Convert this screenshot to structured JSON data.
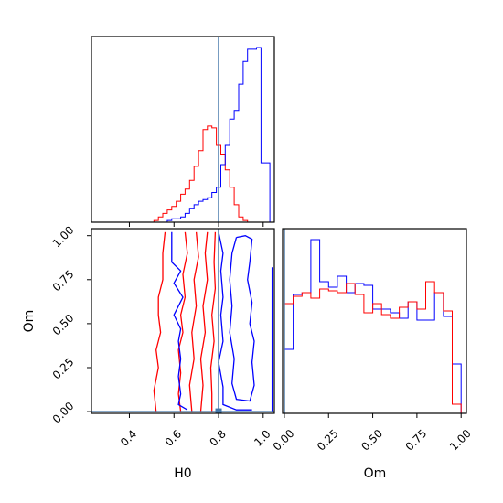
{
  "chart_data": [
    {
      "type": "histogram",
      "panel": "H0 marginal (top-left)",
      "xlim": [
        0.23,
        1.05
      ],
      "bin_width": 0.02,
      "bin_edges_start": 0.23,
      "truth_line": 0.8,
      "series": [
        {
          "color": "#ff0000",
          "counts": [
            0,
            0,
            0,
            0,
            0,
            0,
            0,
            0,
            0,
            0,
            0,
            0,
            0,
            0,
            0.01,
            0.03,
            0.05,
            0.07,
            0.09,
            0.12,
            0.16,
            0.19,
            0.24,
            0.32,
            0.41,
            0.53,
            0.55,
            0.54,
            0.44,
            0.39,
            0.3,
            0.2,
            0.1,
            0.03,
            0.01,
            0,
            0,
            0,
            0,
            0,
            0
          ]
        },
        {
          "color": "#0000ff",
          "counts": [
            0,
            0,
            0,
            0,
            0,
            0,
            0,
            0,
            0,
            0,
            0,
            0,
            0,
            0,
            0,
            0,
            0,
            0.01,
            0.02,
            0.02,
            0.03,
            0.05,
            0.08,
            0.1,
            0.12,
            0.13,
            0.14,
            0.17,
            0.2,
            0.33,
            0.44,
            0.59,
            0.64,
            0.79,
            0.92,
            0.99,
            0.99,
            1.0,
            0.34,
            0.34,
            0
          ]
        }
      ]
    },
    {
      "type": "contour",
      "panel": "H0 vs Om 2D (bottom-left)",
      "xlabel": "H0",
      "ylabel": "Om",
      "xlim": [
        0.23,
        1.05
      ],
      "ylim": [
        -0.01,
        1.04
      ],
      "xticks": [
        "0.4",
        "0.6",
        "0.8",
        "1.0"
      ],
      "yticks": [
        "0.00",
        "0.25",
        "0.50",
        "0.75",
        "1.00"
      ],
      "truth_point": [
        0.8,
        0.0
      ],
      "series": [
        {
          "color": "#ff0000",
          "levels": [
            [
              [
                0.56,
                1.02
              ],
              [
                0.55,
                0.9
              ],
              [
                0.55,
                0.75
              ],
              [
                0.53,
                0.65
              ],
              [
                0.53,
                0.55
              ],
              [
                0.54,
                0.45
              ],
              [
                0.52,
                0.35
              ],
              [
                0.53,
                0.25
              ],
              [
                0.51,
                0.12
              ],
              [
                0.52,
                0.0
              ]
            ],
            [
              [
                0.65,
                1.02
              ],
              [
                0.66,
                0.9
              ],
              [
                0.64,
                0.78
              ],
              [
                0.65,
                0.65
              ],
              [
                0.63,
                0.55
              ],
              [
                0.64,
                0.45
              ],
              [
                0.62,
                0.35
              ],
              [
                0.63,
                0.22
              ],
              [
                0.62,
                0.1
              ],
              [
                0.63,
                0.0
              ]
            ],
            [
              [
                0.7,
                1.02
              ],
              [
                0.71,
                0.88
              ],
              [
                0.69,
                0.75
              ],
              [
                0.7,
                0.6
              ],
              [
                0.68,
                0.45
              ],
              [
                0.69,
                0.3
              ],
              [
                0.67,
                0.15
              ],
              [
                0.68,
                0.0
              ]
            ],
            [
              [
                0.75,
                1.02
              ],
              [
                0.74,
                0.9
              ],
              [
                0.75,
                0.75
              ],
              [
                0.73,
                0.6
              ],
              [
                0.74,
                0.45
              ],
              [
                0.72,
                0.3
              ],
              [
                0.73,
                0.15
              ],
              [
                0.72,
                0.0
              ]
            ],
            [
              [
                0.785,
                1.02
              ],
              [
                0.78,
                0.85
              ],
              [
                0.785,
                0.7
              ],
              [
                0.77,
                0.55
              ],
              [
                0.78,
                0.4
              ],
              [
                0.765,
                0.25
              ],
              [
                0.77,
                0.1
              ],
              [
                0.77,
                0.0
              ]
            ]
          ]
        },
        {
          "color": "#0000ff",
          "levels": [
            [
              [
                0.59,
                1.02
              ],
              [
                0.59,
                0.85
              ],
              [
                0.63,
                0.8
              ],
              [
                0.6,
                0.73
              ],
              [
                0.64,
                0.65
              ],
              [
                0.6,
                0.55
              ],
              [
                0.63,
                0.47
              ],
              [
                0.62,
                0.4
              ],
              [
                0.63,
                0.3
              ],
              [
                0.62,
                0.2
              ],
              [
                0.63,
                0.1
              ],
              [
                0.62,
                0.04
              ],
              [
                0.66,
                0.01
              ]
            ],
            [
              [
                0.8,
                1.02
              ],
              [
                0.82,
                0.9
              ],
              [
                0.81,
                0.8
              ],
              [
                0.82,
                0.65
              ],
              [
                0.81,
                0.55
              ],
              [
                0.82,
                0.4
              ],
              [
                0.8,
                0.28
              ],
              [
                0.82,
                0.14
              ],
              [
                0.82,
                0.04
              ],
              [
                0.88,
                0.01
              ],
              [
                0.95,
                0.01
              ]
            ],
            [
              [
                0.88,
                0.99
              ],
              [
                0.92,
                1.0
              ],
              [
                0.95,
                0.98
              ],
              [
                0.94,
                0.85
              ],
              [
                0.93,
                0.75
              ],
              [
                0.95,
                0.62
              ],
              [
                0.94,
                0.5
              ],
              [
                0.96,
                0.4
              ],
              [
                0.95,
                0.28
              ],
              [
                0.96,
                0.15
              ],
              [
                0.94,
                0.06
              ],
              [
                0.88,
                0.07
              ],
              [
                0.86,
                0.16
              ],
              [
                0.87,
                0.3
              ],
              [
                0.85,
                0.45
              ],
              [
                0.86,
                0.6
              ],
              [
                0.85,
                0.75
              ],
              [
                0.86,
                0.9
              ],
              [
                0.88,
                0.99
              ]
            ],
            [
              [
                1.04,
                0.82
              ],
              [
                1.04,
                0.0
              ]
            ]
          ]
        }
      ]
    },
    {
      "type": "histogram",
      "panel": "Om marginal (bottom-right)",
      "xlabel": "Om",
      "xlim": [
        -0.01,
        1.03
      ],
      "xticks": [
        "0.00",
        "0.25",
        "0.50",
        "0.75",
        "1.00"
      ],
      "bin_width": 0.05,
      "bin_edges_start": 0.0,
      "truth_line": 0.0,
      "series": [
        {
          "color": "#0000ff",
          "counts": [
            0.35,
            0.65,
            0.66,
            0.95,
            0.72,
            0.69,
            0.75,
            0.66,
            0.71,
            0.7,
            0.57,
            0.57,
            0.55,
            0.52,
            0.61,
            0.51,
            0.51,
            0.66,
            0.53,
            0.27
          ]
        },
        {
          "color": "#ff0000",
          "counts": [
            0.6,
            0.64,
            0.66,
            0.63,
            0.68,
            0.67,
            0.66,
            0.71,
            0.65,
            0.55,
            0.6,
            0.54,
            0.52,
            0.58,
            0.61,
            0.57,
            0.72,
            0.66,
            0.56,
            0.05
          ]
        }
      ]
    }
  ]
}
